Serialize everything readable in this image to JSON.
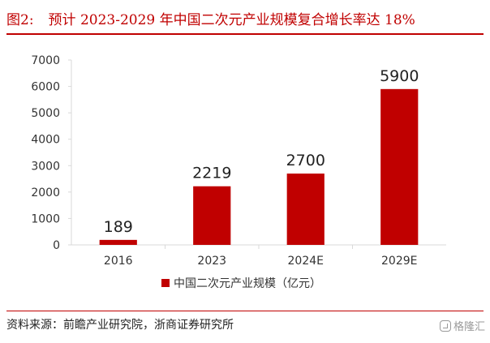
{
  "figure": {
    "number": "图2:",
    "title": "预计 2023-2029 年中国二次元产业规模复合增长率达 18%",
    "source": "资料来源：前瞻产业研究院，浙商证券研究所",
    "watermark": "格隆汇"
  },
  "colors": {
    "accent": "#c00000",
    "axis": "#d9d9d9",
    "text": "#333333"
  },
  "chart_data": {
    "type": "bar",
    "categories": [
      "2016",
      "2023",
      "2024E",
      "2029E"
    ],
    "series": [
      {
        "name": "中国二次元产业规模（亿元）",
        "values": [
          189,
          2219,
          2700,
          5900
        ],
        "color": "#c00000"
      }
    ],
    "data_labels": [
      "189",
      "2219",
      "2700",
      "5900"
    ],
    "ylim": [
      0,
      7000
    ],
    "yticks": [
      "0",
      "1000",
      "2000",
      "3000",
      "4000",
      "5000",
      "6000",
      "7000"
    ],
    "grid": false,
    "legend_position": "bottom"
  }
}
